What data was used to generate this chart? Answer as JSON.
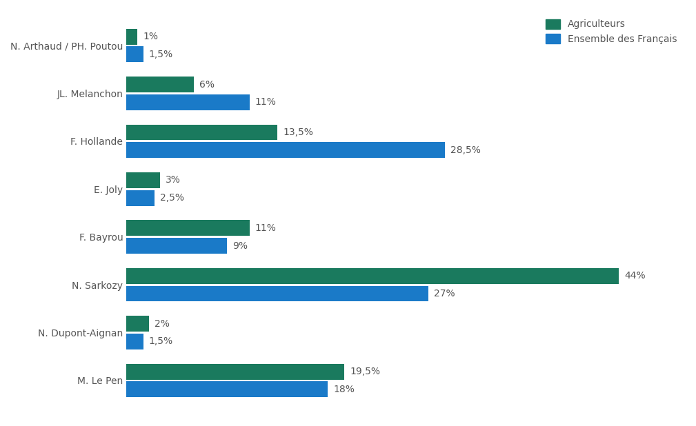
{
  "categories": [
    "N. Arthaud / PH. Poutou",
    "JL. Melanchon",
    "F. Hollande",
    "E. Joly",
    "F. Bayrou",
    "N. Sarkozy",
    "N. Dupont-Aignan",
    "M. Le Pen"
  ],
  "agriculteurs": [
    1,
    6,
    13.5,
    3,
    11,
    44,
    2,
    19.5
  ],
  "ensemble": [
    1.5,
    11,
    28.5,
    2.5,
    9,
    27,
    1.5,
    18
  ],
  "agriculteurs_labels": [
    "1%",
    "6%",
    "13,5%",
    "3%",
    "11%",
    "44%",
    "2%",
    "19,5%"
  ],
  "ensemble_labels": [
    "1,5%",
    "11%",
    "28,5%",
    "2,5%",
    "9%",
    "27%",
    "1,5%",
    "18%"
  ],
  "color_agri": "#1a7a5e",
  "color_ens": "#1a7ac8",
  "legend_agri": "Agriculteurs",
  "legend_ens": "Ensemble des Français",
  "background_color": "#ffffff",
  "bar_height": 0.33,
  "xlim": [
    0,
    50
  ],
  "label_fontsize": 10,
  "tick_fontsize": 10,
  "legend_fontsize": 10,
  "text_color": "#555555"
}
